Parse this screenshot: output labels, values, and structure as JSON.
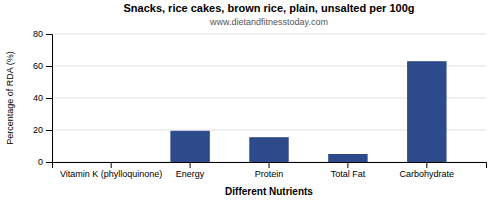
{
  "chart_data": {
    "type": "bar",
    "title": "Snacks, rice cakes, brown rice, plain, unsalted per 100g",
    "subtitle": "www.dietandfitnesstoday.com",
    "xlabel": "Different Nutrients",
    "ylabel": "Percentage of RDA (%)",
    "categories": [
      "Vitamin K (phylloquinone)",
      "Energy",
      "Protein",
      "Total Fat",
      "Carbohydrate"
    ],
    "values": [
      0.0,
      19.5,
      15.5,
      5.0,
      63.0
    ],
    "color": "#2d4a8a",
    "ylim": [
      0,
      80
    ],
    "yticks": [
      0,
      20,
      40,
      60,
      80
    ],
    "grid": true
  }
}
